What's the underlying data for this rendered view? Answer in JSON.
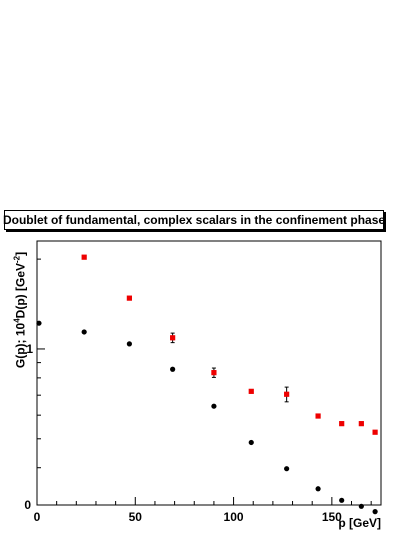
{
  "chart_data": {
    "type": "scatter",
    "title": "Doublet of fundamental, complex scalars in the confinement phase",
    "xlabel": "p [GeV]",
    "ylabel": "G(p); 10",
    "ylabel_sup": "4",
    "ylabel_mid": "D(p) [GeV",
    "ylabel_sup2": "-2",
    "ylabel_end": "]",
    "xlim": [
      0,
      175
    ],
    "ylim_log": [
      0.3,
      2.3
    ],
    "log_y": true,
    "grid": false,
    "x_tick_labels": [
      "0",
      "50",
      "100",
      "150"
    ],
    "y_tick_labels": [
      "1"
    ],
    "y_zero_label": "0",
    "colors": {
      "series_black": "#000000",
      "series_red": "#ee0000"
    },
    "series": [
      {
        "marker": "circle",
        "color": "#000000",
        "x": [
          1,
          24,
          47,
          69,
          90,
          109,
          127,
          143,
          155,
          165,
          172
        ],
        "y": [
          1.22,
          1.14,
          1.04,
          0.855,
          0.643,
          0.486,
          0.397,
          0.34,
          0.311,
          0.297,
          0.285
        ]
      },
      {
        "marker": "square",
        "color": "#ee0000",
        "x": [
          24,
          47,
          69,
          90,
          109,
          127,
          143,
          155,
          165,
          172
        ],
        "y": [
          2.03,
          1.48,
          1.09,
          0.833,
          0.721,
          0.705,
          0.596,
          0.562,
          0.562,
          0.526
        ],
        "yerr": [
          0,
          0,
          0.04,
          0.03,
          0,
          0.04,
          0,
          0,
          0,
          0
        ]
      }
    ]
  }
}
